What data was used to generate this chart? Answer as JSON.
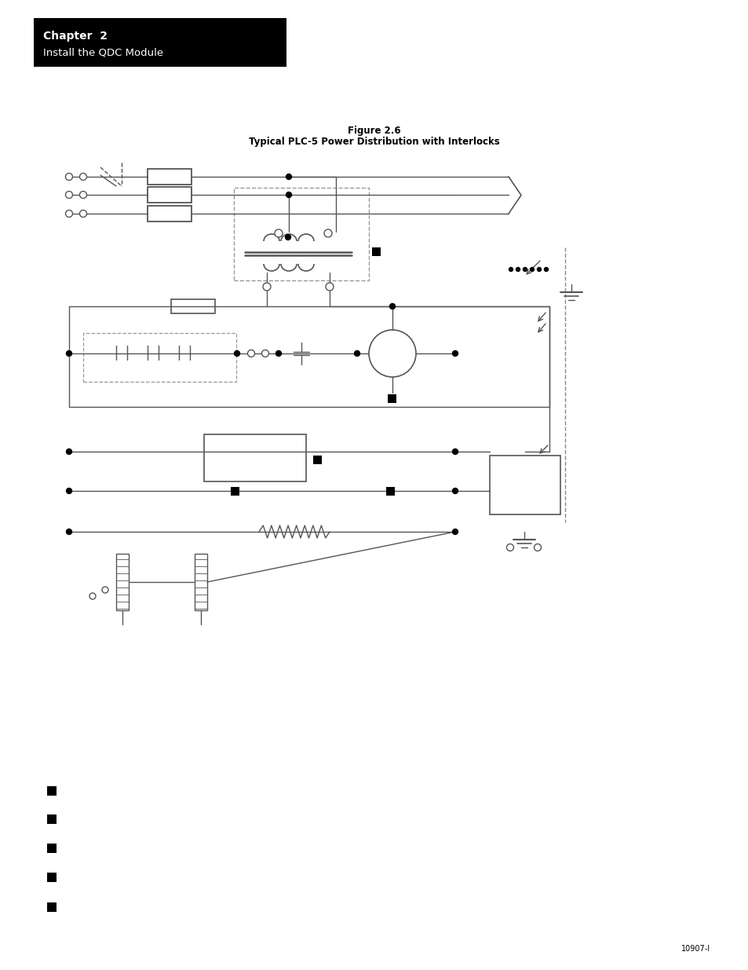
{
  "page_bg": "#ffffff",
  "header_bg": "#000000",
  "header_text1": "Chapter  2",
  "header_text2": "Install the QDC Module",
  "figure_title1": "Figure 2.6",
  "figure_title2": "Typical PLC-5 Power Distribution with Interlocks",
  "footer_text": "10907-I",
  "line_color": "#555555",
  "dark_color": "#000000"
}
